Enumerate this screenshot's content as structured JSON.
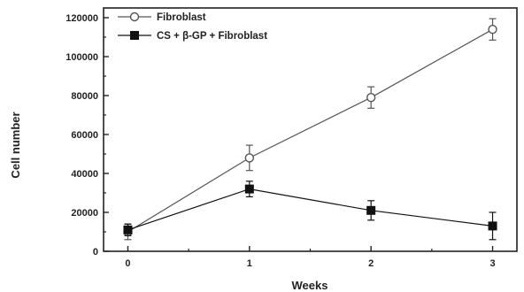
{
  "chart_data": {
    "type": "line",
    "xlabel": "Weeks",
    "ylabel": "Cell number",
    "x": [
      0,
      1,
      2,
      3
    ],
    "xlim": [
      -0.2,
      3.2
    ],
    "ylim": [
      0,
      125000
    ],
    "x_ticks": [
      "0",
      "1",
      "2",
      "3"
    ],
    "y_ticks": [
      "0",
      "20000",
      "40000",
      "60000",
      "80000",
      "100000",
      "120000"
    ],
    "y_tick_values": [
      0,
      20000,
      40000,
      60000,
      80000,
      100000,
      120000
    ],
    "grid": false,
    "legend_position": "top-left",
    "series": [
      {
        "name": "Fibroblast",
        "marker": "open-circle",
        "color": "#555555",
        "values": [
          10000,
          48000,
          79000,
          114000
        ],
        "errors": [
          4000,
          6500,
          5500,
          5500
        ]
      },
      {
        "name": "CS + β-GP + Fibroblast",
        "marker": "filled-square",
        "color": "#111111",
        "values": [
          11000,
          32000,
          21000,
          13000
        ],
        "errors": [
          3000,
          4000,
          5000,
          7000
        ]
      }
    ]
  }
}
